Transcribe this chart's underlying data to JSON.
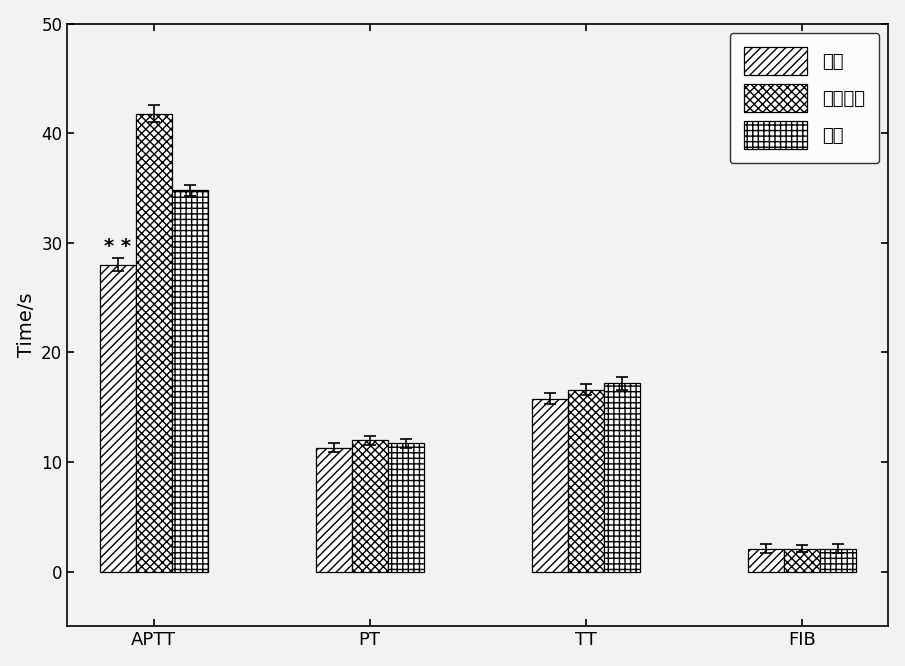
{
  "categories": [
    "APTT",
    "PT",
    "TT",
    "FIB"
  ],
  "series_labels": [
    "三七",
    "阿司匹林",
    "空白"
  ],
  "values": {
    "三七": [
      28.0,
      11.3,
      15.8,
      2.1
    ],
    "阿司匹林": [
      41.8,
      12.0,
      16.6,
      2.1
    ],
    "空白": [
      34.8,
      11.7,
      17.2,
      2.1
    ]
  },
  "errors": {
    "三七": [
      0.6,
      0.4,
      0.5,
      0.4
    ],
    "阿司匹林": [
      0.8,
      0.4,
      0.5,
      0.3
    ],
    "空白": [
      0.5,
      0.4,
      0.6,
      0.4
    ]
  },
  "annotation": "* *",
  "ylim": [
    -5,
    50
  ],
  "yticks": [
    0,
    10,
    20,
    30,
    40,
    50
  ],
  "ylabel": "Time/s",
  "bar_width": 0.25,
  "hatch_patterns": [
    "////",
    "xxxx",
    "+++"
  ],
  "legend_loc": "upper right",
  "bg_color": "#f2f2f2"
}
